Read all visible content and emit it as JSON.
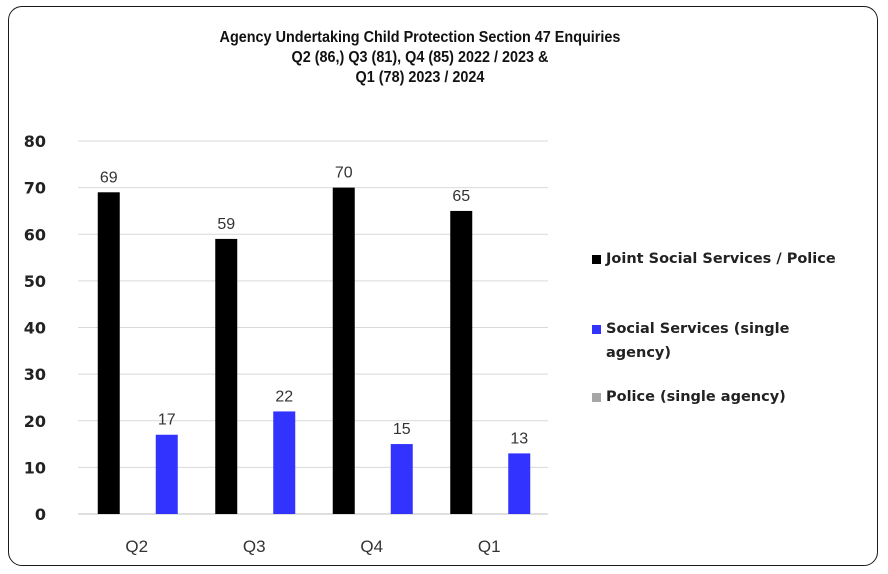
{
  "chart_data": {
    "type": "bar",
    "title": [
      "Agency Undertaking Child Protection Section 47 Enquiries",
      "Q2 (86,) Q3 (81), Q4 (85) 2022 / 2023 &",
      "Q1 (78) 2023 / 2024"
    ],
    "categories": [
      "Q2",
      "Q3",
      "Q4",
      "Q1"
    ],
    "ylim": [
      0,
      80
    ],
    "yticks": [
      0,
      10,
      20,
      30,
      40,
      50,
      60,
      70,
      80
    ],
    "grid": true,
    "legend_position": "right",
    "series": [
      {
        "name": "Joint Social Services / Police",
        "values": [
          69,
          59,
          70,
          65
        ],
        "color": "#000000"
      },
      {
        "name": "Social Services (single agency)",
        "values": [
          17,
          22,
          15,
          13
        ],
        "color": "#3333ff"
      },
      {
        "name": "Police (single agency)",
        "values": [
          0,
          0,
          0,
          0
        ],
        "color": "#a6a6a6"
      }
    ],
    "data_labels": [
      [
        "69",
        "59",
        "70",
        "65"
      ],
      [
        "17",
        "22",
        "15",
        "13"
      ]
    ]
  },
  "legend": {
    "items": [
      {
        "label": "Joint Social Services / Police",
        "color": "#000000"
      },
      {
        "label": "Social Services (single agency)",
        "color": "#3333ff"
      },
      {
        "label": "Police (single agency)",
        "color": "#a6a6a6"
      }
    ]
  }
}
